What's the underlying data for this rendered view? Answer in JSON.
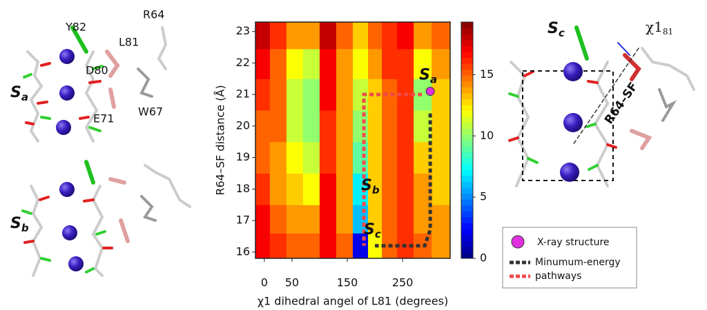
{
  "chart_data": {
    "type": "heatmap",
    "xlabel": "χ1 dihedral angel of L81 (degrees)",
    "ylabel": "R64–SF distance (Å)",
    "xlim": [
      -16,
      336
    ],
    "ylim": [
      15.8,
      23.3
    ],
    "xticks": [
      0,
      50,
      150,
      250
    ],
    "yticks": [
      16,
      17,
      18,
      19,
      20,
      21,
      22,
      23
    ],
    "zlim": [
      0,
      19.3
    ],
    "zticks": [
      0,
      5,
      10,
      15
    ],
    "x": [
      -5,
      25,
      55,
      85,
      115,
      145,
      175,
      200,
      225,
      255,
      285,
      320
    ],
    "y": [
      16.2,
      17.0,
      18.0,
      19.0,
      20.0,
      21.0,
      22.0,
      22.9
    ],
    "z": [
      [
        17,
        16,
        15,
        15,
        17,
        15,
        2,
        12,
        15,
        16,
        15,
        14
      ],
      [
        17,
        15,
        14,
        14,
        17,
        14,
        6,
        13,
        15,
        16,
        14,
        14
      ],
      [
        16,
        14,
        13,
        12,
        17,
        14,
        7,
        13,
        15,
        16,
        14,
        13
      ],
      [
        15,
        14,
        12,
        11,
        16,
        14,
        9,
        13,
        15,
        16,
        13,
        13
      ],
      [
        15,
        15,
        11,
        10,
        16,
        14,
        10,
        13,
        15,
        16,
        11,
        13
      ],
      [
        16,
        15,
        11,
        10,
        17,
        14,
        11,
        13,
        15,
        16,
        10,
        13
      ],
      [
        17,
        15,
        12,
        11,
        17,
        14,
        12,
        14,
        16,
        16,
        12,
        14
      ],
      [
        18,
        16,
        14,
        14,
        18,
        15,
        13,
        15,
        16,
        17,
        14,
        15
      ]
    ],
    "series": [
      {
        "name": "Minumum-energy",
        "color": "#333333",
        "x": [
          300,
          300,
          290,
          200
        ],
        "y": [
          20.4,
          16.7,
          16.2,
          16.2
        ]
      },
      {
        "name": "pathways",
        "color": "#f04a4a",
        "x": [
          285,
          180,
          180
        ],
        "y": [
          21.0,
          21.0,
          16.2
        ]
      }
    ],
    "points": {
      "name": "X-ray structure",
      "color": "#e030e0",
      "x": [
        300
      ],
      "y": [
        21.1
      ]
    },
    "annotations": [
      {
        "text": "S",
        "sub": "a",
        "x": 280,
        "y": 21.6
      },
      {
        "text": "S",
        "sub": "b",
        "x": 175,
        "y": 18.1
      },
      {
        "text": "S",
        "sub": "c",
        "x": 180,
        "y": 16.7
      }
    ]
  },
  "panels": {
    "top_left": {
      "labels": [
        "Y82",
        "R64",
        "L81",
        "D80",
        "W67",
        "E71"
      ],
      "state": {
        "text": "S",
        "sub": "a"
      }
    },
    "bottom_left": {
      "state": {
        "text": "S",
        "sub": "b"
      }
    },
    "right": {
      "state": {
        "text": "S",
        "sub": "c"
      },
      "chi": {
        "text": "χ1",
        "sub": "81"
      },
      "distance": "R64–SF"
    }
  }
}
